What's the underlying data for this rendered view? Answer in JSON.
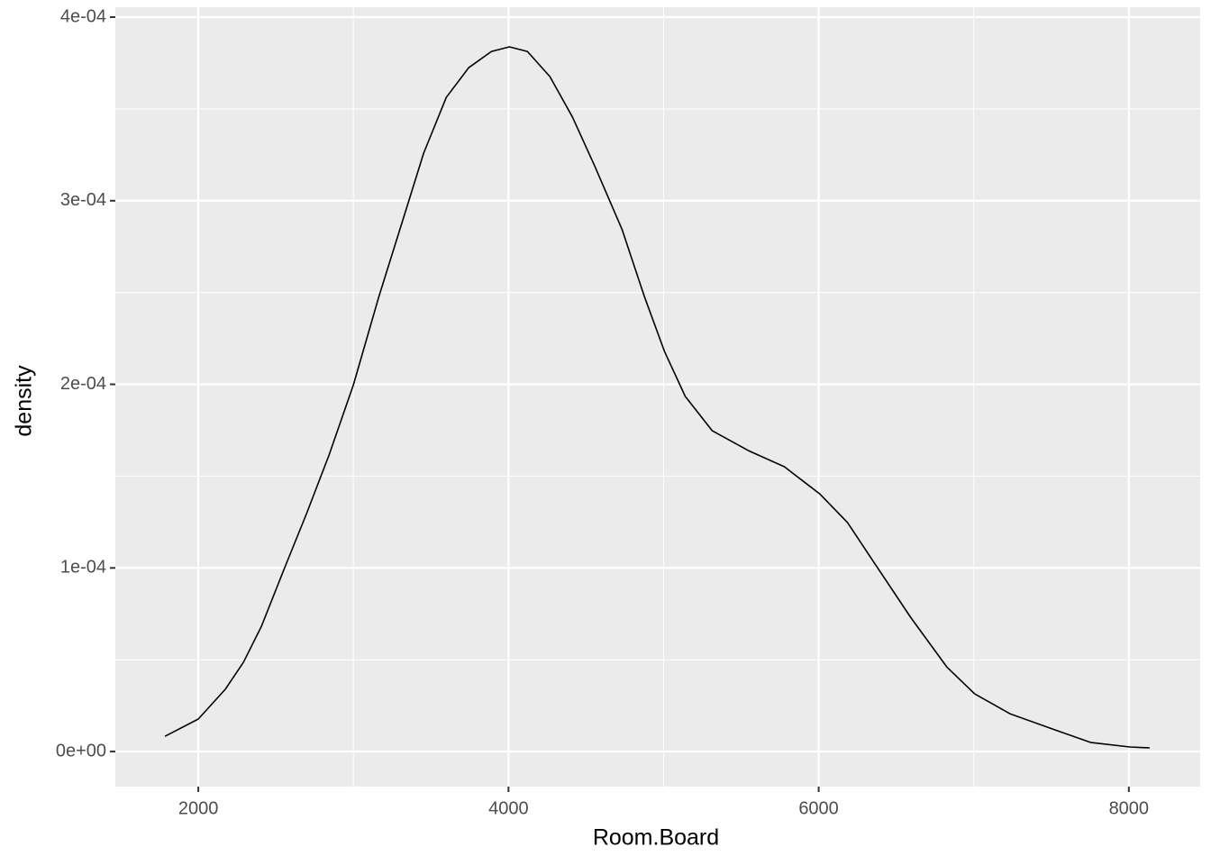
{
  "chart_data": {
    "type": "line",
    "x_label": "Room.Board",
    "y_label": "density",
    "x": [
      1785,
      2000,
      2174,
      2291,
      2407,
      2552,
      2698,
      2843,
      3000,
      3163,
      3308,
      3453,
      3599,
      3744,
      3890,
      4006,
      4122,
      4267,
      4413,
      4558,
      4733,
      4878,
      5006,
      5140,
      5314,
      5547,
      5779,
      6006,
      6186,
      6360,
      6593,
      6826,
      7006,
      7233,
      7523,
      7756,
      8006,
      8134
    ],
    "values": [
      8.3e-06,
      1.77e-05,
      3.39e-05,
      4.86e-05,
      6.82e-05,
      9.91e-05,
      0.0001296,
      0.0001615,
      0.0001997,
      0.0002474,
      0.0002866,
      0.0003259,
      0.0003563,
      0.0003725,
      0.0003813,
      0.0003838,
      0.0003813,
      0.0003676,
      0.0003455,
      0.0003185,
      0.0002842,
      0.0002474,
      0.0002179,
      0.0001934,
      0.0001747,
      0.0001639,
      0.0001551,
      0.0001404,
      0.0001247,
      0.0001026,
      7.31e-05,
      4.61e-05,
      3.14e-05,
      2.06e-05,
      1.18e-05,
      4.9e-06,
      2.5e-06,
      2e-06
    ],
    "color": "#000000",
    "xlim": [
      1465,
      8460
    ],
    "ylim": [
      -1.91e-05,
      0.0004054
    ],
    "xticks": [
      2000,
      4000,
      6000,
      8000
    ],
    "yticks": [
      {
        "value": 0,
        "label": "0e+00"
      },
      {
        "value": 0.0001,
        "label": "1e-04"
      },
      {
        "value": 0.0002,
        "label": "2e-04"
      },
      {
        "value": 0.0003,
        "label": "3e-04"
      },
      {
        "value": 0.0004,
        "label": "4e-04"
      }
    ],
    "x_minor_grid": [
      3000,
      5000,
      7000
    ],
    "y_minor_grid": [
      5e-05,
      0.00015,
      0.00025,
      0.00035
    ],
    "grid": true
  }
}
